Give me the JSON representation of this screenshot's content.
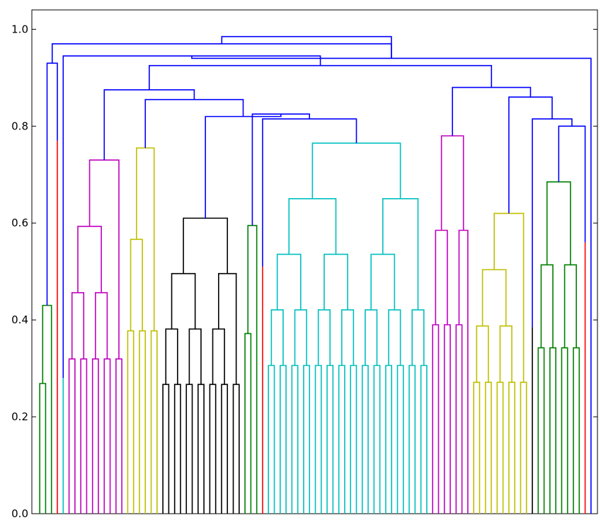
{
  "chart_data": {
    "type": "dendrogram",
    "title": "",
    "xlabel": "",
    "ylabel": "",
    "ylim": [
      0,
      1.04
    ],
    "yticks": [
      0.0,
      0.2,
      0.4,
      0.6,
      0.8,
      1.0
    ],
    "ytick_labels": [
      "0.0",
      "0.2",
      "0.4",
      "0.6",
      "0.8",
      "1.0"
    ],
    "grid": false,
    "legend": "none",
    "colors": {
      "link": "#0000ff",
      "green": "#008000",
      "red": "#ff0000",
      "magenta": "#bf00bf",
      "olive": "#bfbf00",
      "black": "#000000",
      "cyan": "#00bfbf"
    },
    "clusters": [
      {
        "name": "green-left",
        "color": "green",
        "leaves": 3,
        "height": 0.43
      },
      {
        "name": "red-left",
        "color": "red",
        "leaves": 1,
        "height": 0.77
      },
      {
        "name": "cyan-single",
        "color": "cyan",
        "leaves": 1,
        "height": 0.28
      },
      {
        "name": "magenta-left",
        "color": "magenta",
        "leaves": 10,
        "height": 0.73
      },
      {
        "name": "olive-left",
        "color": "olive",
        "leaves": 6,
        "height": 0.755
      },
      {
        "name": "black-main",
        "color": "black",
        "leaves": 14,
        "height": 0.61
      },
      {
        "name": "green-mid",
        "color": "green",
        "leaves": 3,
        "height": 0.595
      },
      {
        "name": "red-mid",
        "color": "red",
        "leaves": 1,
        "height": 0.51
      },
      {
        "name": "cyan-main",
        "color": "cyan",
        "leaves": 28,
        "height": 0.765
      },
      {
        "name": "magenta-right",
        "color": "magenta",
        "leaves": 7,
        "height": 0.78
      },
      {
        "name": "olive-right",
        "color": "olive",
        "leaves": 10,
        "height": 0.62
      },
      {
        "name": "black-single",
        "color": "black",
        "leaves": 1,
        "height": 0.385
      },
      {
        "name": "green-right",
        "color": "green",
        "leaves": 8,
        "height": 0.685
      },
      {
        "name": "red-right",
        "color": "red",
        "leaves": 1,
        "height": 0.56
      },
      {
        "name": "blue-single",
        "color": "link",
        "leaves": 1,
        "height": 0.805
      }
    ],
    "upper_merges": [
      {
        "name": "cyan-red",
        "left": "red-mid",
        "right": "cyan-main",
        "height": 0.815
      },
      {
        "name": "green-cyan",
        "left": "green-mid",
        "right": "cyan-red",
        "height": 0.825
      },
      {
        "name": "black-rest",
        "left": "black-main",
        "right": "green-cyan",
        "height": 0.82
      },
      {
        "name": "olive-black",
        "left": "olive-left",
        "right": "black-rest",
        "height": 0.855
      },
      {
        "name": "magenta-olive",
        "left": "magenta-left",
        "right": "olive-black",
        "height": 0.875
      },
      {
        "name": "green-red-right",
        "left": "green-right",
        "right": "red-right",
        "height": 0.8
      },
      {
        "name": "black-green",
        "left": "black-single",
        "right": "green-red-right",
        "height": 0.815
      },
      {
        "name": "olive-black-green",
        "left": "olive-right",
        "right": "black-green",
        "height": 0.86
      },
      {
        "name": "magenta-right-merge",
        "left": "magenta-right",
        "right": "olive-black-green",
        "height": 0.88
      },
      {
        "name": "middle-major",
        "left": "magenta-olive",
        "right": "magenta-right-merge",
        "height": 0.925
      },
      {
        "name": "upper-middle",
        "left": "cyan-single",
        "right": "middle-major",
        "height": 0.945
      },
      {
        "name": "with-blue-single",
        "left": "upper-middle",
        "right": "blue-single",
        "height": 0.94
      },
      {
        "name": "green-red-left",
        "left": "green-left",
        "right": "red-left",
        "height": 0.93
      },
      {
        "name": "left-join",
        "left": "green-red-left",
        "right": "with-blue-single",
        "height": 0.97
      },
      {
        "name": "root",
        "left": "left-join",
        "right": "with-blue-single",
        "height": 0.985
      }
    ]
  }
}
